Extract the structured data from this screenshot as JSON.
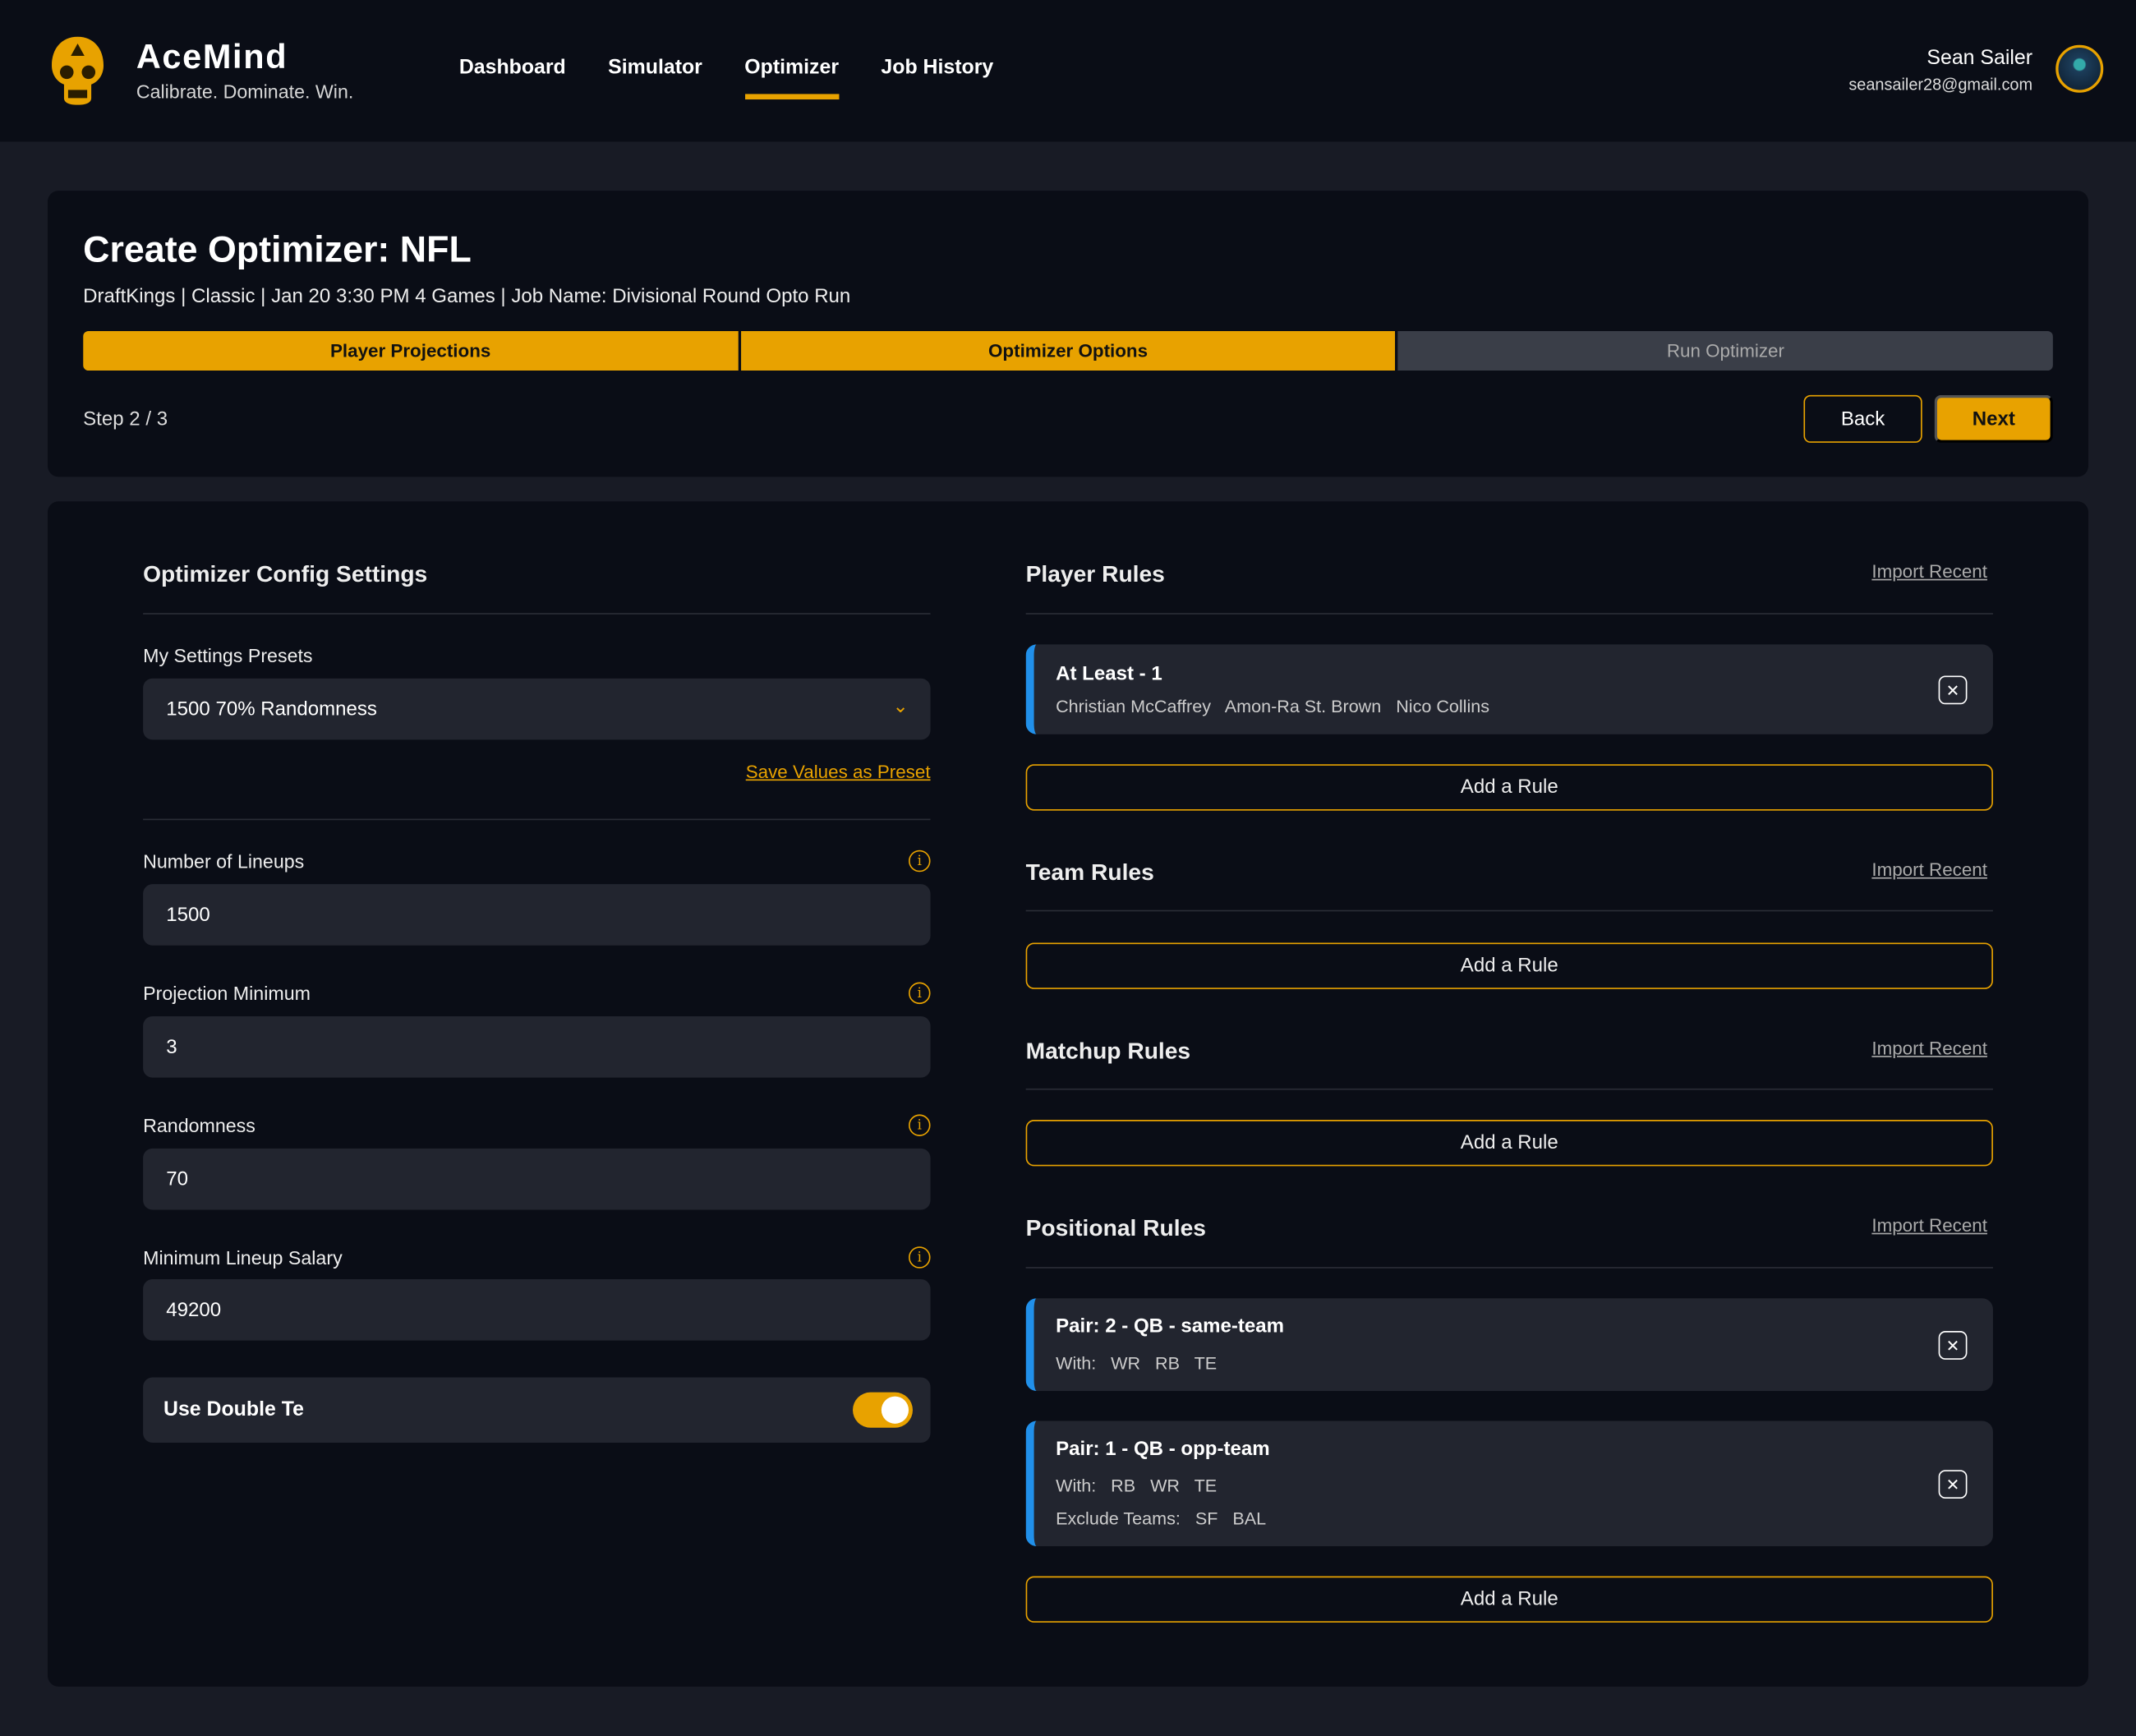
{
  "header": {
    "brand": "AceMind",
    "tagline": "Calibrate. Dominate. Win.",
    "nav": [
      "Dashboard",
      "Simulator",
      "Optimizer",
      "Job History"
    ],
    "active_nav": "Optimizer",
    "user_name": "Sean Sailer",
    "user_email": "seansailer28@gmail.com",
    "accent": "#e8a200"
  },
  "wizard": {
    "title": "Create Optimizer: NFL",
    "subtitle": "DraftKings | Classic | Jan 20 3:30 PM 4 Games | Job Name: Divisional Round Opto Run",
    "steps": [
      "Player Projections",
      "Optimizer Options",
      "Run Optimizer"
    ],
    "step_text": "Step 2 / 3",
    "back": "Back",
    "next": "Next"
  },
  "config": {
    "title": "Optimizer Config Settings",
    "presets_label": "My Settings Presets",
    "preset_value": "1500 70% Randomness",
    "save_preset": "Save Values as Preset",
    "fields": [
      {
        "label": "Number of Lineups",
        "value": "1500"
      },
      {
        "label": "Projection Minimum",
        "value": "3"
      },
      {
        "label": "Randomness",
        "value": "70"
      },
      {
        "label": "Minimum Lineup Salary",
        "value": "49200"
      }
    ],
    "toggle_label": "Use Double Te",
    "toggle_on": true
  },
  "rules": {
    "import": "Import Recent",
    "add": "Add a Rule",
    "player_title": "Player Rules",
    "player_rule": {
      "title": "At Least - 1",
      "detail": "Christian McCaffrey   Amon-Ra St. Brown   Nico Collins"
    },
    "team_title": "Team Rules",
    "matchup_title": "Matchup Rules",
    "positional_title": "Positional Rules",
    "pos1": {
      "title": "Pair: 2 - QB - same-team",
      "with": "With:   WR   RB   TE"
    },
    "pos2": {
      "title": "Pair: 1 - QB - opp-team",
      "with": "With:   RB   WR   TE",
      "exclude": "Exclude Teams:   SF   BAL"
    }
  }
}
